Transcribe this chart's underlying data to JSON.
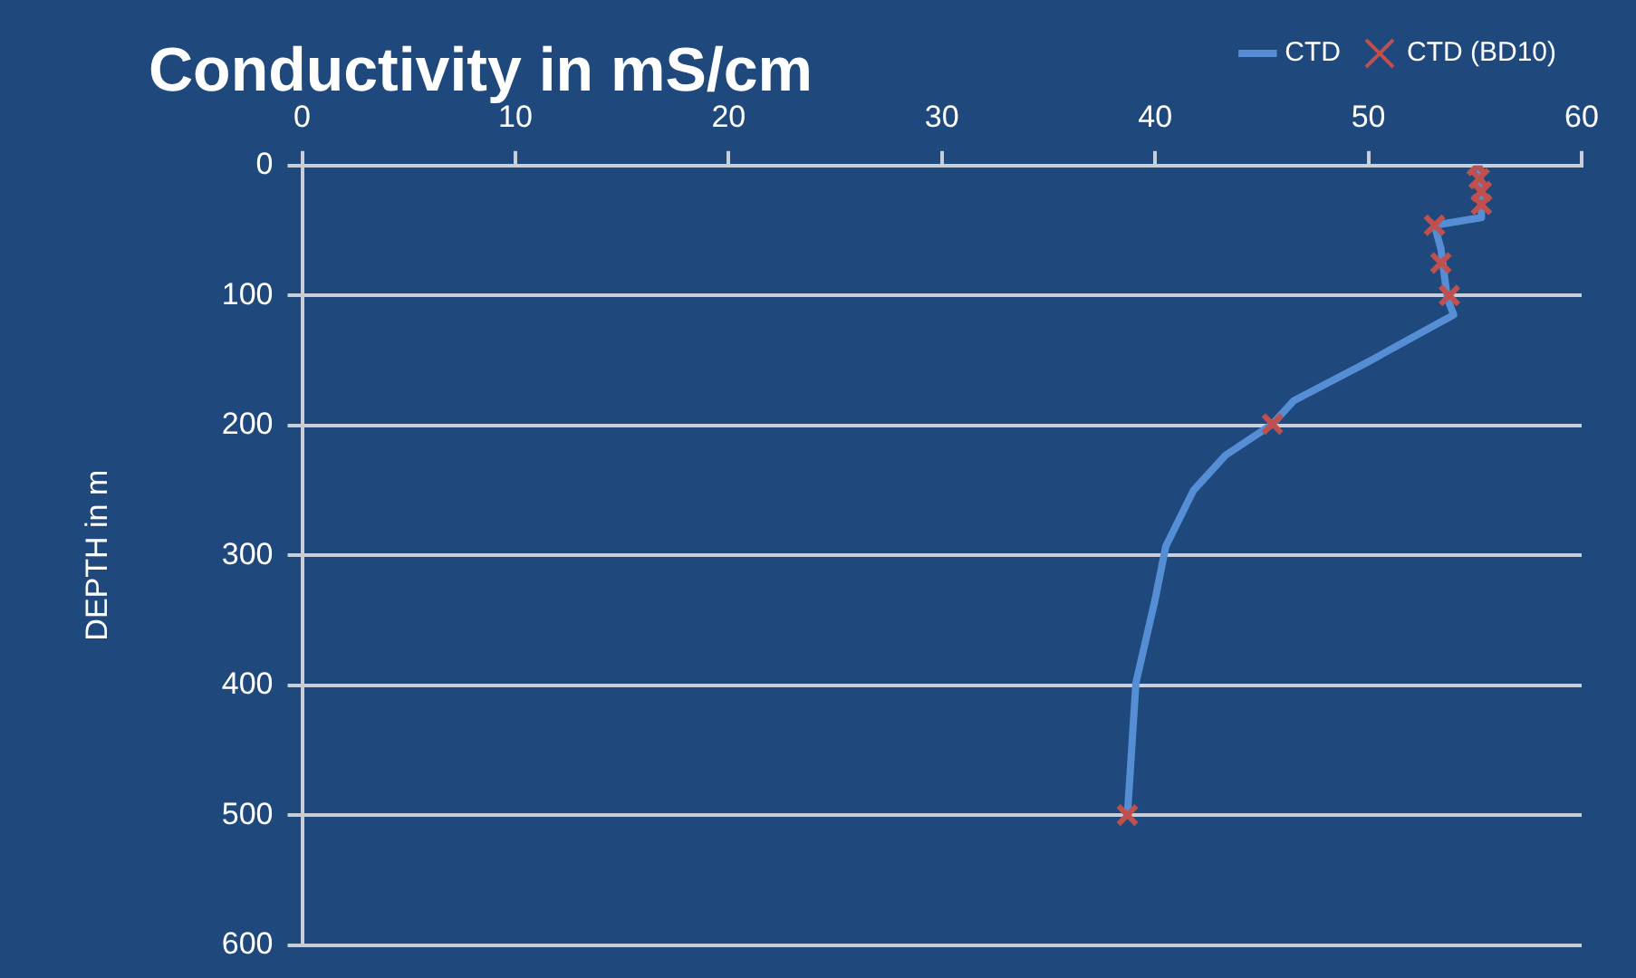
{
  "chart_data": {
    "type": "line",
    "title": "Conductivity in mS/cm",
    "ylabel": "DEPTH in m",
    "xlim": [
      0,
      60
    ],
    "xticks": [
      0,
      10,
      20,
      30,
      40,
      50,
      60
    ],
    "ylim": [
      600,
      0
    ],
    "yticks": [
      0,
      100,
      200,
      300,
      400,
      500,
      600
    ],
    "grid": "y",
    "legend": "top right",
    "series": [
      {
        "name": "CTD",
        "type": "line",
        "color": "#558ed5",
        "marker": "none",
        "x": [
          55.2,
          55.3,
          55.3,
          53.1,
          53.4,
          53.7,
          54.0,
          53.1,
          50.0,
          46.5,
          45.5,
          43.3,
          41.8,
          40.5,
          40.0,
          39.1,
          38.7
        ],
        "values": [
          0,
          20,
          40,
          46,
          64,
          102,
          115,
          123,
          151,
          181,
          199,
          223,
          250,
          293,
          334,
          398,
          500
        ]
      },
      {
        "name": "CTD (BD10)",
        "type": "scatter",
        "color": "#c0504d",
        "marker": "cross",
        "x": [
          55.1,
          55.2,
          55.3,
          55.3,
          53.1,
          53.4,
          53.8,
          45.5,
          38.7
        ],
        "values": [
          0,
          10,
          20,
          30,
          46,
          75,
          100,
          199,
          500
        ]
      }
    ]
  }
}
